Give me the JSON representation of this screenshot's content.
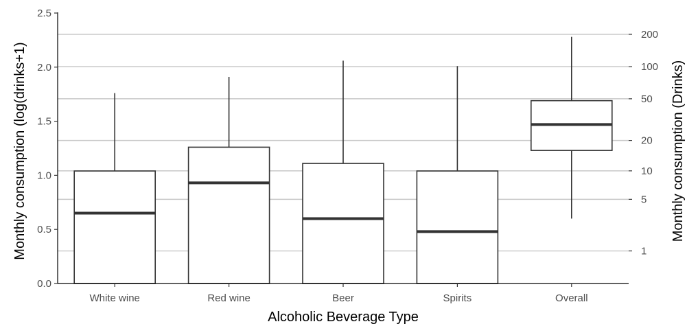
{
  "chart_data": {
    "type": "boxplot",
    "xlabel": "Alcoholic Beverage Type",
    "ylabel": "Monthly consumption (log(drinks+1)",
    "y2label": "Monthly consumption (Drinks)",
    "ylim": [
      0,
      2.5
    ],
    "y_ticks": [
      0.0,
      0.5,
      1.0,
      1.5,
      2.0,
      2.5
    ],
    "y_tick_labels": [
      "0.0",
      "0.5",
      "1.0",
      "1.5",
      "2.0",
      "2.5"
    ],
    "y2_ticks": [
      1,
      5,
      10,
      20,
      50,
      100,
      200
    ],
    "y2_tick_labels": [
      "1",
      "5",
      "10",
      "20",
      "50",
      "100",
      "200"
    ],
    "grid": "horizontal lines at secondary-axis ticks",
    "categories": [
      "White wine",
      "Red wine",
      "Beer",
      "Spirits",
      "Overall"
    ],
    "boxes": [
      {
        "category": "White wine",
        "min": 0.0,
        "q1": 0.0,
        "median": 0.65,
        "q3": 1.04,
        "max": 1.76
      },
      {
        "category": "Red wine",
        "min": 0.0,
        "q1": 0.0,
        "median": 0.93,
        "q3": 1.26,
        "max": 1.91
      },
      {
        "category": "Beer",
        "min": 0.0,
        "q1": 0.0,
        "median": 0.6,
        "q3": 1.11,
        "max": 2.06
      },
      {
        "category": "Spirits",
        "min": 0.0,
        "q1": 0.0,
        "median": 0.48,
        "q3": 1.04,
        "max": 2.01
      },
      {
        "category": "Overall",
        "min": 0.6,
        "q1": 1.23,
        "median": 1.47,
        "q3": 1.69,
        "max": 2.28
      }
    ]
  }
}
